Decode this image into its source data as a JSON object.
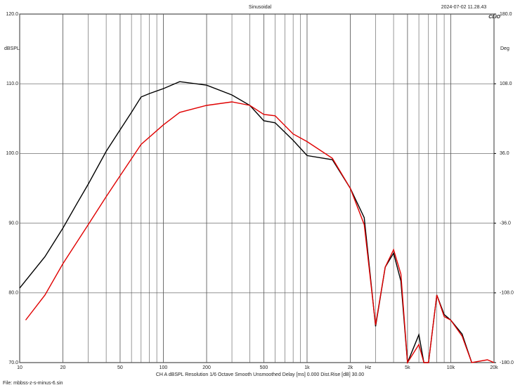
{
  "chart_data": {
    "type": "line",
    "title": "Sinusoidal",
    "timestamp": "2024-07-02 11.28.43",
    "brand": "CLIO",
    "ylabel": "dBSPL",
    "y2label": "Deg",
    "xunit": "Hz",
    "log_x": true,
    "xminor_grid": true,
    "xlim": [
      10,
      20000
    ],
    "xticks": [
      10,
      20,
      50,
      100,
      200,
      500,
      {
        "value": 1000,
        "label": "1k"
      },
      {
        "value": 2000,
        "label": "2k"
      },
      {
        "value": 5000,
        "label": "5k"
      },
      {
        "value": 10000,
        "label": "10k"
      },
      {
        "value": 20000,
        "label": "20k"
      }
    ],
    "ylim": [
      70,
      120
    ],
    "yticks": [
      {
        "value": 70,
        "label": "70.0"
      },
      {
        "value": 80,
        "label": "80.0"
      },
      {
        "value": 90,
        "label": "90.0"
      },
      {
        "value": 100,
        "label": "100.0"
      },
      {
        "value": 110,
        "label": "110.0"
      },
      {
        "value": 120,
        "label": "120.0"
      }
    ],
    "y2lim": [
      -180,
      180
    ],
    "y2ticks": [
      {
        "value": -180,
        "label": "-180.0"
      },
      {
        "value": -108,
        "label": "-108.0"
      },
      {
        "value": -36,
        "label": "-36.0"
      },
      {
        "value": 36,
        "label": "36.0"
      },
      {
        "value": 108,
        "label": "108.0"
      },
      {
        "value": 180,
        "label": "180.0"
      }
    ],
    "footer": "CH A   dBSPL   Resolution 1/6 Octave   Smooth Unsmoothed   Delay [ms] 0.000   Dist.Rise [dB] 30.00",
    "file": "File: mbbss-z-s-minus-6.sin",
    "series": [
      {
        "color": "#000000",
        "x": [
          10,
          15,
          20,
          25,
          30,
          40,
          50,
          60,
          70,
          80,
          100,
          130,
          200,
          300,
          400,
          500,
          600,
          800,
          1000,
          1500,
          2000,
          2500,
          3000,
          3500,
          4000,
          4500,
          5000,
          6000,
          6500,
          7000,
          8000,
          9000,
          10000,
          12000,
          14000
        ],
        "values": [
          80.7,
          85.2,
          89.3,
          92.8,
          95.6,
          100.3,
          103.4,
          105.9,
          108.1,
          108.6,
          109.3,
          110.3,
          109.8,
          108.4,
          106.9,
          104.7,
          104.4,
          101.9,
          99.7,
          99.1,
          95.0,
          90.8,
          75.2,
          83.7,
          85.7,
          81.7,
          70,
          74.0,
          70,
          70,
          79.7,
          76.9,
          76.1,
          74.1,
          70
        ]
      },
      {
        "color": "#e00000",
        "x": [
          11,
          15,
          20,
          30,
          40,
          50,
          70,
          100,
          130,
          200,
          300,
          400,
          500,
          600,
          800,
          1000,
          1500,
          2000,
          2500,
          3000,
          3500,
          4000,
          4500,
          5000,
          6000,
          6500,
          7000,
          8000,
          9000,
          10000,
          12000,
          14000,
          18000,
          20000
        ],
        "values": [
          76.1,
          79.7,
          84.2,
          89.8,
          93.8,
          96.8,
          101.3,
          104.1,
          105.9,
          106.9,
          107.4,
          106.9,
          105.6,
          105.4,
          102.8,
          101.7,
          99.3,
          95.0,
          89.8,
          75.4,
          83.7,
          86.2,
          82.7,
          70,
          72.6,
          70,
          70,
          79.7,
          76.6,
          76.1,
          73.8,
          70,
          70.4,
          70
        ]
      }
    ]
  }
}
